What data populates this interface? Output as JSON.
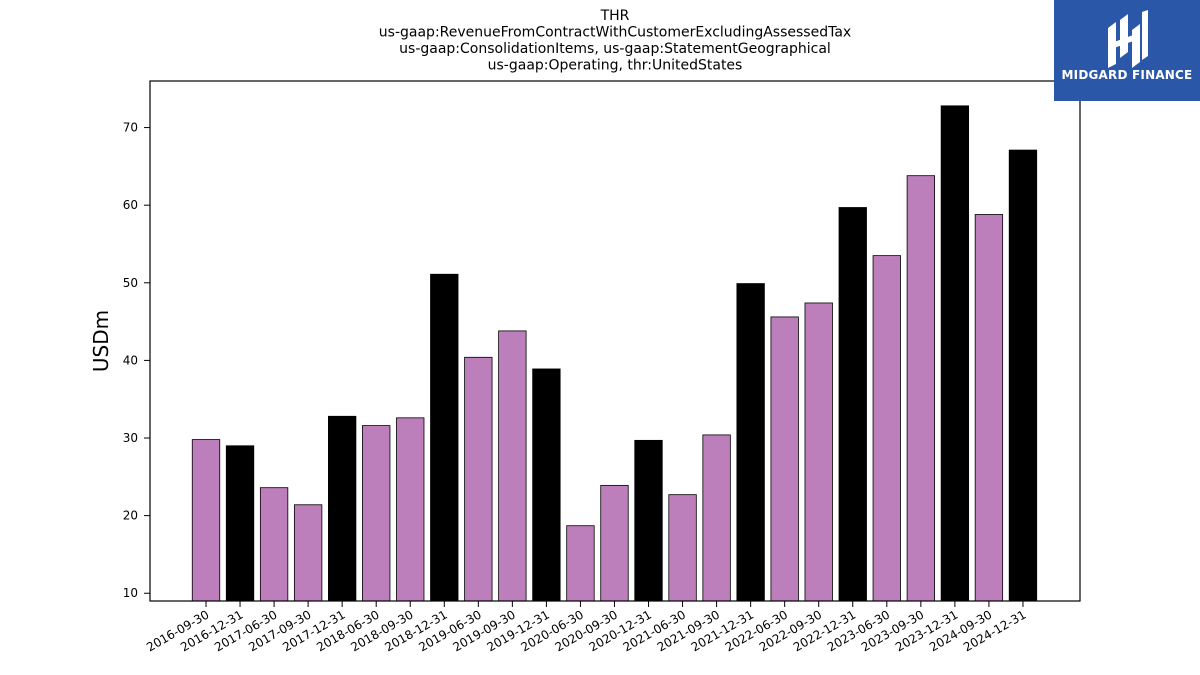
{
  "chart_data": {
    "type": "bar",
    "title_lines": [
      "THR",
      "us-gaap:RevenueFromContractWithCustomerExcludingAssessedTax",
      "us-gaap:ConsolidationItems, us-gaap:StatementGeographical",
      "us-gaap:Operating, thr:UnitedStates"
    ],
    "ylabel": "USDm",
    "xlabel": "",
    "ylim": [
      9,
      76
    ],
    "yticks": [
      10,
      20,
      30,
      40,
      50,
      60,
      70
    ],
    "categories": [
      "2016-09-30",
      "2016-12-31",
      "2017-06-30",
      "2017-09-30",
      "2017-12-31",
      "2018-06-30",
      "2018-09-30",
      "2018-12-31",
      "2019-06-30",
      "2019-09-30",
      "2019-12-31",
      "2020-06-30",
      "2020-09-30",
      "2020-12-31",
      "2021-06-30",
      "2021-09-30",
      "2021-12-31",
      "2022-06-30",
      "2022-09-30",
      "2022-12-31",
      "2023-06-30",
      "2023-09-30",
      "2023-12-31",
      "2024-09-30",
      "2024-12-31"
    ],
    "values": [
      29.8,
      29.0,
      23.6,
      21.4,
      32.8,
      31.6,
      32.6,
      51.1,
      40.4,
      43.8,
      38.9,
      18.7,
      23.9,
      29.7,
      22.7,
      30.4,
      49.9,
      45.6,
      47.4,
      59.7,
      53.5,
      63.8,
      72.8,
      58.8,
      67.1
    ],
    "bar_colors": [
      "#bc7fbc",
      "#000000",
      "#bc7fbc",
      "#bc7fbc",
      "#000000",
      "#bc7fbc",
      "#bc7fbc",
      "#000000",
      "#bc7fbc",
      "#bc7fbc",
      "#000000",
      "#bc7fbc",
      "#bc7fbc",
      "#000000",
      "#bc7fbc",
      "#bc7fbc",
      "#000000",
      "#bc7fbc",
      "#bc7fbc",
      "#000000",
      "#bc7fbc",
      "#bc7fbc",
      "#000000",
      "#bc7fbc",
      "#000000"
    ],
    "grid": false,
    "colors": {
      "quarter": "#bc7fbc",
      "year_end": "#000000"
    }
  },
  "logo": {
    "text": "MIDGARD FINANCE",
    "background": "#2b57a8",
    "icon": "midgard-logo-icon"
  }
}
